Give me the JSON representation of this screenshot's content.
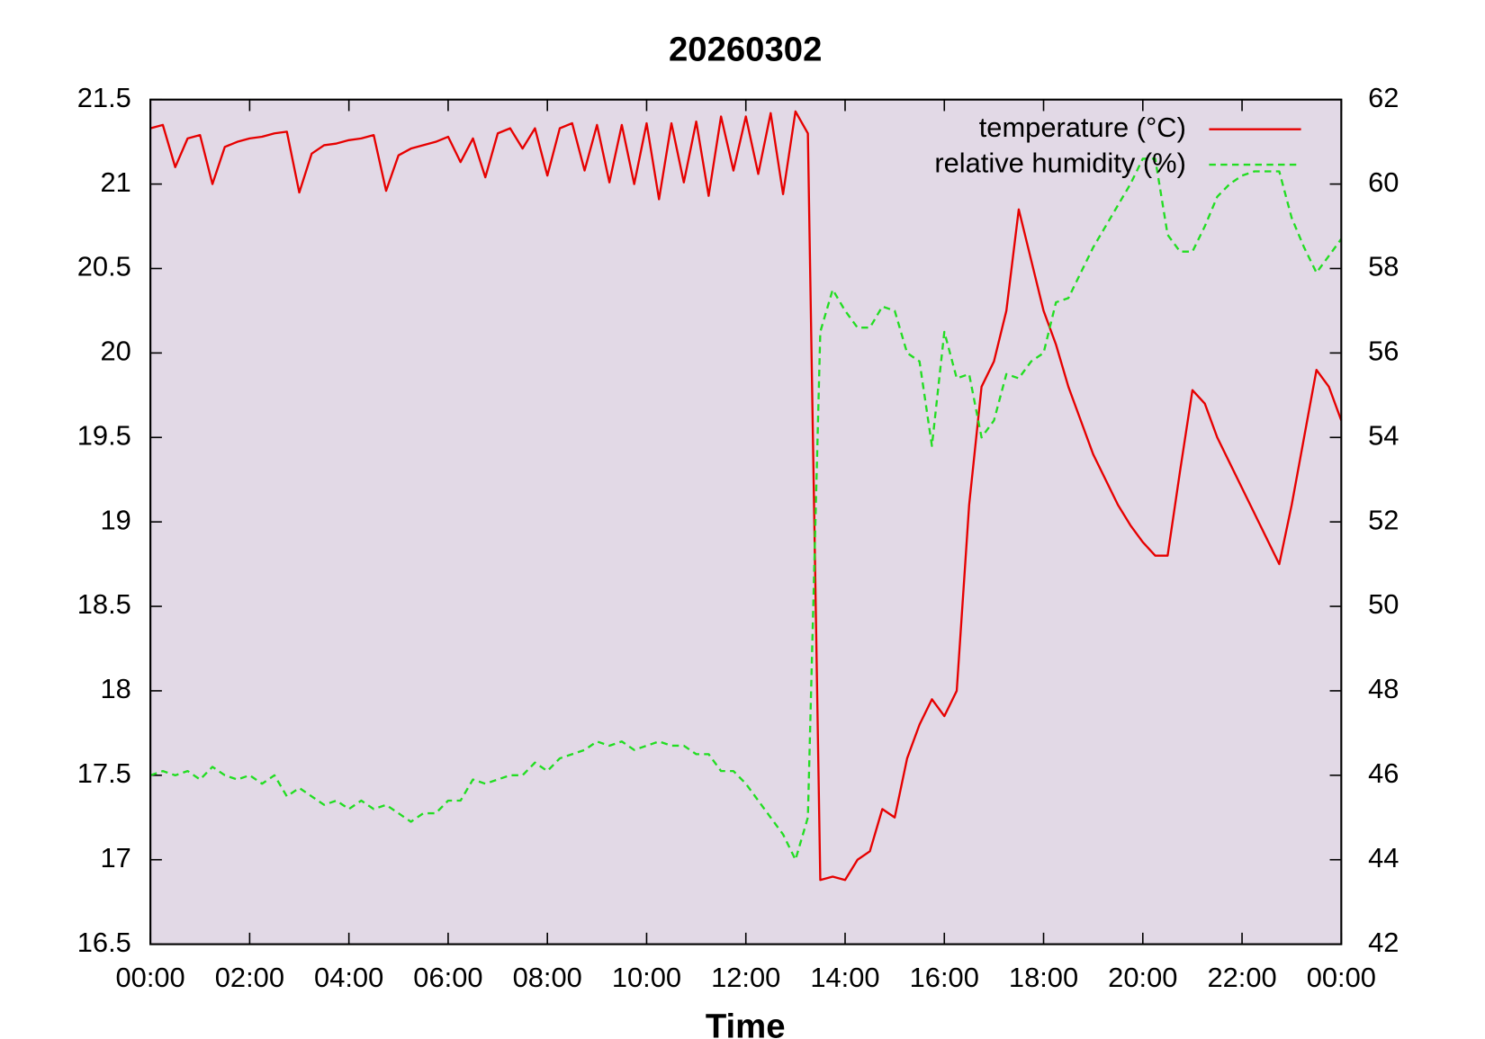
{
  "chart_data": {
    "type": "line",
    "title": "20260302",
    "xlabel": "Time",
    "x": [
      0,
      0.25,
      0.5,
      0.75,
      1,
      1.25,
      1.5,
      1.75,
      2,
      2.25,
      2.5,
      2.75,
      3,
      3.25,
      3.5,
      3.75,
      4,
      4.25,
      4.5,
      4.75,
      5,
      5.25,
      5.5,
      5.75,
      6,
      6.25,
      6.5,
      6.75,
      7,
      7.25,
      7.5,
      7.75,
      8,
      8.25,
      8.5,
      8.75,
      9,
      9.25,
      9.5,
      9.75,
      10,
      10.25,
      10.5,
      10.75,
      11,
      11.25,
      11.5,
      11.75,
      12,
      12.25,
      12.5,
      12.75,
      13,
      13.25,
      13.5,
      13.75,
      14,
      14.25,
      14.5,
      14.75,
      15,
      15.25,
      15.5,
      15.75,
      16,
      16.25,
      16.5,
      16.75,
      17,
      17.25,
      17.5,
      17.75,
      18,
      18.25,
      18.5,
      18.75,
      19,
      19.25,
      19.5,
      19.75,
      20,
      20.25,
      20.5,
      20.75,
      21,
      21.25,
      21.5,
      21.75,
      22,
      22.25,
      22.5,
      22.75,
      23,
      23.25,
      23.5,
      23.75,
      24
    ],
    "series": [
      {
        "name": "temperature (°C)",
        "color": "#e60000",
        "dash": false,
        "values": [
          21.33,
          21.35,
          21.1,
          21.27,
          21.29,
          21.0,
          21.22,
          21.25,
          21.27,
          21.28,
          21.3,
          21.31,
          20.95,
          21.18,
          21.23,
          21.24,
          21.26,
          21.27,
          21.29,
          20.96,
          21.17,
          21.21,
          21.23,
          21.25,
          21.28,
          21.13,
          21.27,
          21.04,
          21.3,
          21.33,
          21.21,
          21.33,
          21.05,
          21.33,
          21.36,
          21.08,
          21.35,
          21.01,
          21.35,
          21.0,
          21.36,
          20.91,
          21.36,
          21.01,
          21.37,
          20.93,
          21.4,
          21.08,
          21.4,
          21.06,
          21.42,
          20.94,
          21.43,
          21.3,
          16.88,
          16.9,
          16.88,
          17.0,
          17.05,
          17.3,
          17.25,
          17.6,
          17.8,
          17.95,
          17.85,
          18.0,
          19.1,
          19.8,
          19.95,
          20.25,
          20.85,
          20.55,
          20.25,
          20.05,
          19.8,
          19.6,
          19.4,
          19.25,
          19.1,
          18.98,
          18.88,
          18.8,
          18.8,
          19.3,
          19.78,
          19.7,
          19.5,
          19.35,
          19.2,
          19.05,
          18.9,
          18.75,
          19.1,
          19.5,
          19.9,
          19.8,
          19.6
        ]
      },
      {
        "name": "relative humidity (%)",
        "color": "#22dd22",
        "dash": true,
        "axis": "y2",
        "values": [
          46.0,
          46.1,
          46.0,
          46.1,
          45.9,
          46.2,
          46.0,
          45.9,
          46.0,
          45.8,
          46.0,
          45.5,
          45.7,
          45.5,
          45.3,
          45.4,
          45.2,
          45.4,
          45.2,
          45.3,
          45.1,
          44.9,
          45.1,
          45.1,
          45.4,
          45.4,
          45.9,
          45.8,
          45.9,
          46.0,
          46.0,
          46.3,
          46.1,
          46.4,
          46.5,
          46.6,
          46.8,
          46.7,
          46.8,
          46.6,
          46.7,
          46.8,
          46.7,
          46.7,
          46.5,
          46.5,
          46.1,
          46.1,
          45.8,
          45.4,
          45.0,
          44.6,
          44.0,
          45.0,
          56.5,
          57.5,
          57.0,
          56.6,
          56.6,
          57.1,
          57.0,
          56.0,
          55.8,
          53.8,
          56.5,
          55.4,
          55.5,
          54.0,
          54.4,
          55.5,
          55.4,
          55.8,
          56.0,
          57.2,
          57.3,
          57.9,
          58.5,
          59.0,
          59.5,
          60.0,
          60.6,
          60.6,
          58.8,
          58.4,
          58.4,
          59.0,
          59.7,
          60.0,
          60.2,
          60.3,
          60.3,
          60.3,
          59.2,
          58.5,
          57.9,
          58.3,
          58.7
        ]
      }
    ],
    "xlim": [
      0,
      24
    ],
    "xticks": [
      {
        "value": 0,
        "label": "00:00"
      },
      {
        "value": 2,
        "label": "02:00"
      },
      {
        "value": 4,
        "label": "04:00"
      },
      {
        "value": 6,
        "label": "06:00"
      },
      {
        "value": 8,
        "label": "08:00"
      },
      {
        "value": 10,
        "label": "10:00"
      },
      {
        "value": 12,
        "label": "12:00"
      },
      {
        "value": 14,
        "label": "14:00"
      },
      {
        "value": 16,
        "label": "16:00"
      },
      {
        "value": 18,
        "label": "18:00"
      },
      {
        "value": 20,
        "label": "20:00"
      },
      {
        "value": 22,
        "label": "22:00"
      },
      {
        "value": 24,
        "label": "00:00"
      }
    ],
    "ylim": [
      16.5,
      21.5
    ],
    "yticks": [
      16.5,
      17,
      17.5,
      18,
      18.5,
      19,
      19.5,
      20,
      20.5,
      21,
      21.5
    ],
    "y2lim": [
      42,
      62
    ],
    "y2ticks": [
      42,
      44,
      46,
      48,
      50,
      52,
      54,
      56,
      58,
      60,
      62
    ],
    "background": "#e2d9e6",
    "legend": "upper right"
  }
}
